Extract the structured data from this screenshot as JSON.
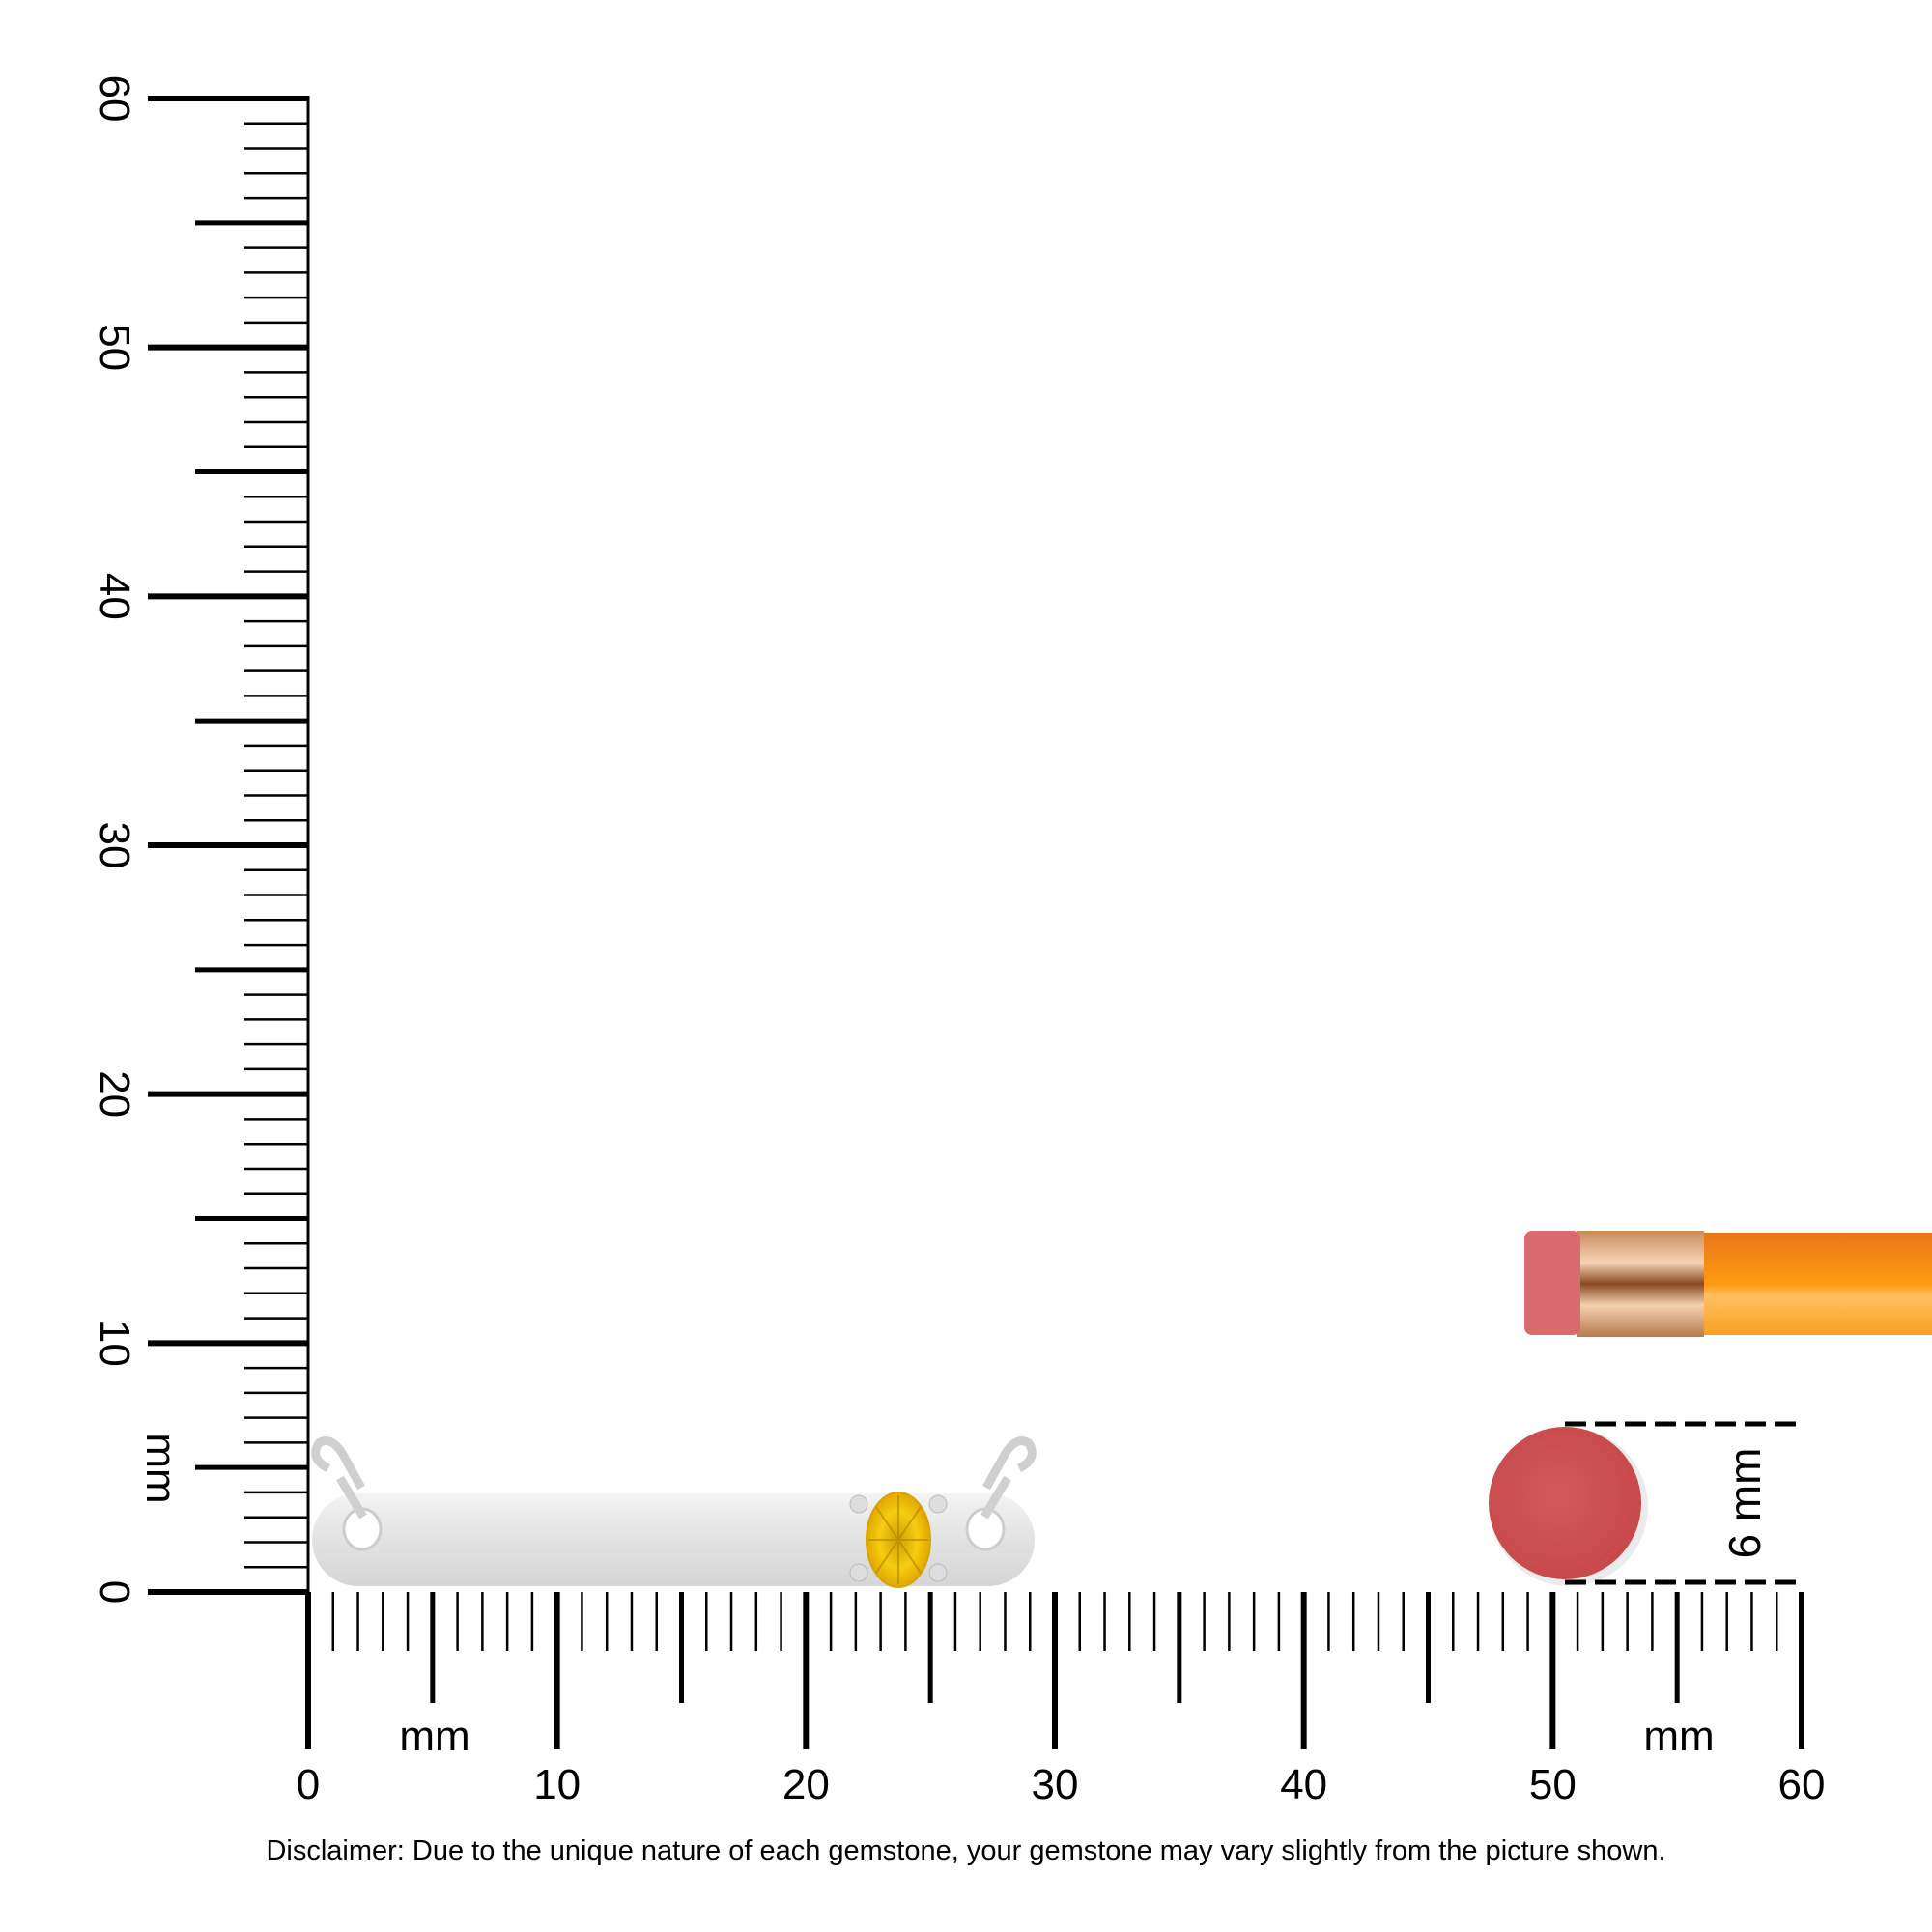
{
  "ruler": {
    "unit_label": "mm",
    "min": 0,
    "max": 60,
    "major_step": 10,
    "mid_step": 5,
    "minor_step": 1,
    "horizontal_tick_labels": [
      "0",
      "10",
      "20",
      "30",
      "40",
      "50",
      "60"
    ],
    "vertical_tick_labels": [
      "0",
      "10",
      "20",
      "30",
      "40",
      "50",
      "60"
    ]
  },
  "product": {
    "type": "bar necklace with single round gemstone",
    "length_mm": 29,
    "gem_color": "#f5c400",
    "metal_color": "#e6e6e6"
  },
  "reference": {
    "eraser_diameter_label": "6 mm",
    "eraser_color": "#d2595a",
    "pencil_color": "#f7941d"
  },
  "disclaimer": "Disclaimer: Due to the unique nature of each gemstone, your gemstone may vary slightly from the picture shown."
}
